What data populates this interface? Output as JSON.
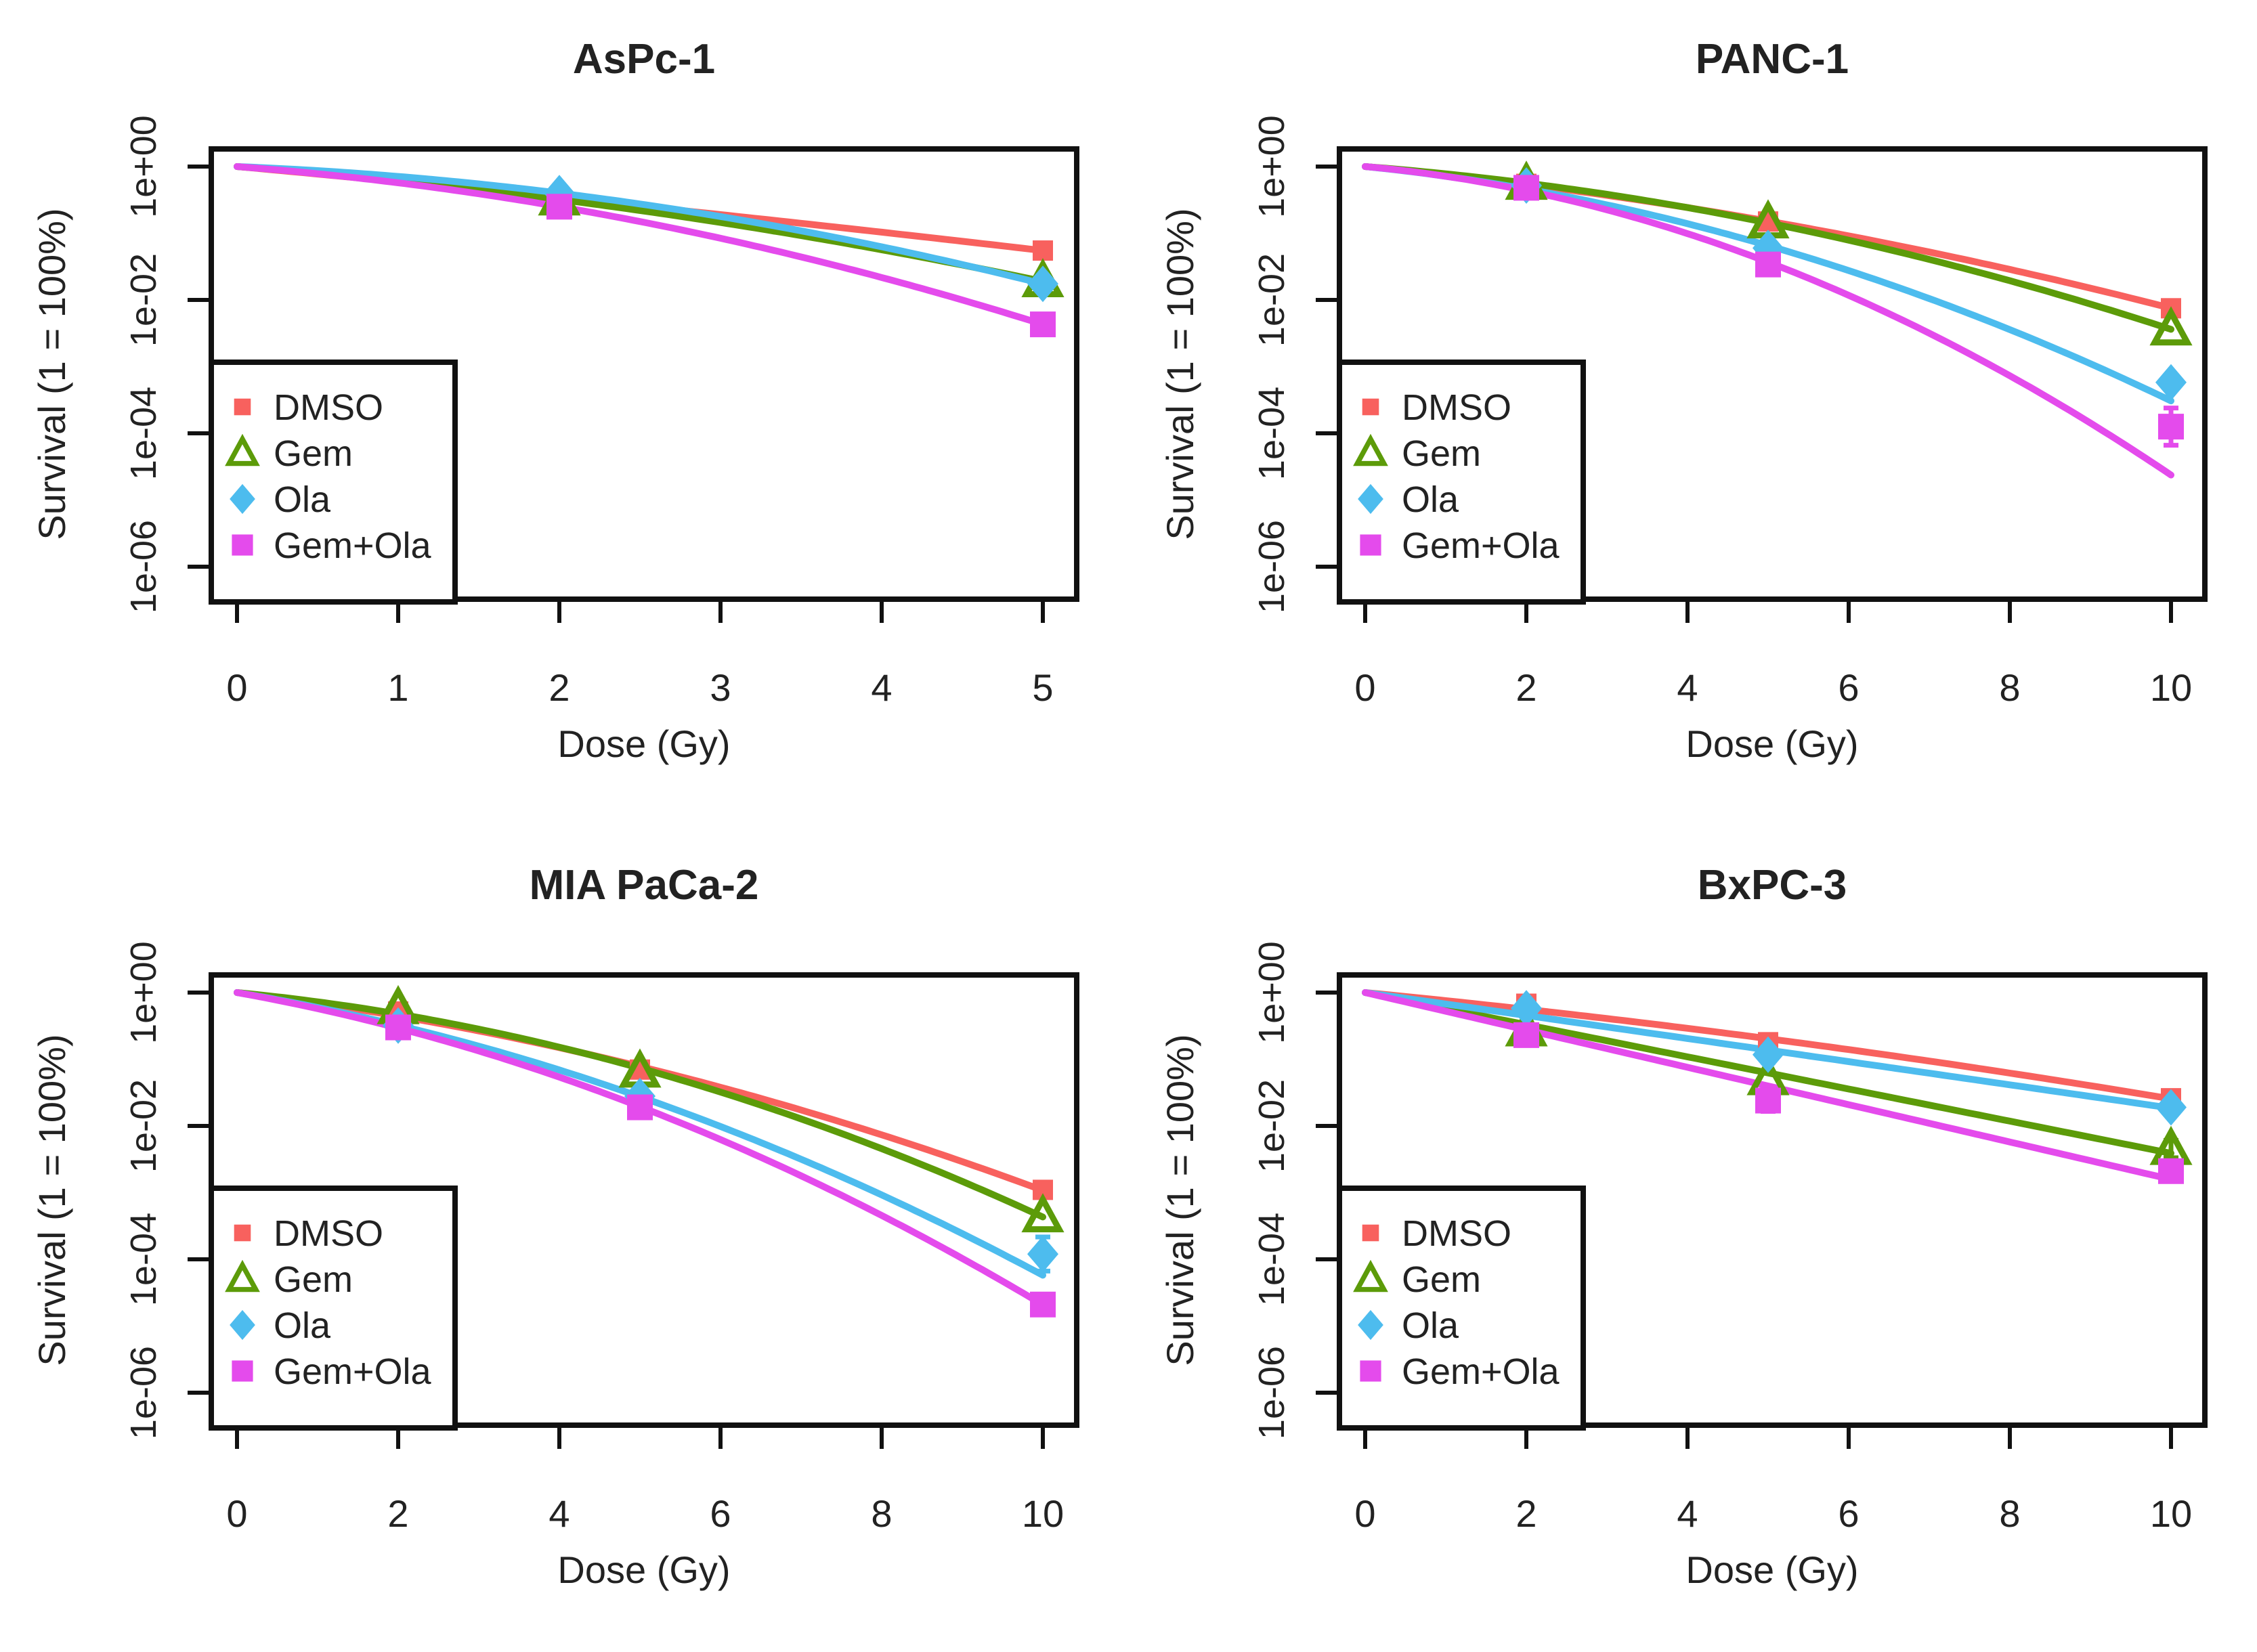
{
  "shared": {
    "ylabel": "Survival (1 = 100%)",
    "xlabel": "Dose (Gy)",
    "yticks": [
      {
        "label": "1e+00",
        "exp": 0
      },
      {
        "label": "1e-02",
        "exp": -2
      },
      {
        "label": "1e-04",
        "exp": -4
      },
      {
        "label": "1e-06",
        "exp": -6
      }
    ],
    "series_meta": [
      {
        "name": "DMSO",
        "color": "#F8615E",
        "marker": "square-small"
      },
      {
        "name": "Gem",
        "color": "#5C9B09",
        "marker": "triangle-open"
      },
      {
        "name": "Ola",
        "color": "#4DBCEE",
        "marker": "diamond"
      },
      {
        "name": "Gem+Ola",
        "color": "#E44BEC",
        "marker": "square"
      }
    ],
    "legend_labels": [
      "DMSO",
      "Gem",
      "Ola",
      "Gem+Ola"
    ],
    "text_color": "#222222",
    "axis_color": "#111111"
  },
  "chart_data": [
    {
      "type": "line",
      "title": "AsPc-1",
      "xlabel": "Dose (Gy)",
      "ylabel": "Survival (1 = 100%)",
      "x_axis": {
        "min": 0,
        "max": 5,
        "ticks": [
          0,
          1,
          2,
          3,
          4,
          5
        ]
      },
      "y_axis": {
        "scale": "log10",
        "tick_values": [
          1,
          0.01,
          0.0001,
          1e-06
        ]
      },
      "series": [
        {
          "name": "DMSO",
          "lq_alpha": 0.5125,
          "lq_beta": 0.0135,
          "points": [
            {
              "dose": 2,
              "survival": 0.34
            },
            {
              "dose": 5,
              "survival": 0.055
            }
          ]
        },
        {
          "name": "Gem",
          "lq_alpha": 0.4207,
          "lq_beta": 0.0744,
          "points": [
            {
              "dose": 2,
              "survival": 0.32
            },
            {
              "dose": 5,
              "survival": 0.019
            }
          ]
        },
        {
          "name": "Ola",
          "lq_alpha": 0.2232,
          "lq_beta": 0.1174,
          "points": [
            {
              "dose": 2,
              "survival": 0.4
            },
            {
              "dose": 5,
              "survival": 0.0174
            }
          ]
        },
        {
          "name": "Gem+Ola",
          "lq_alpha": 0.4284,
          "lq_beta": 0.1323,
          "points": [
            {
              "dose": 2,
              "survival": 0.25
            },
            {
              "dose": 5,
              "survival": 0.0043,
              "err_factor": 1.25
            }
          ]
        }
      ]
    },
    {
      "type": "line",
      "title": "PANC-1",
      "xlabel": "Dose (Gy)",
      "ylabel": "Survival (1 = 100%)",
      "x_axis": {
        "min": 0,
        "max": 10,
        "ticks": [
          0,
          2,
          4,
          6,
          8,
          10
        ]
      },
      "y_axis": {
        "scale": "log10",
        "tick_values": [
          1,
          0.01,
          0.0001,
          1e-06
        ]
      },
      "series": [
        {
          "name": "DMSO",
          "lq_alpha": 0.264,
          "lq_beta": 0.0225,
          "points": [
            {
              "dose": 2,
              "survival": 0.55
            },
            {
              "dose": 5,
              "survival": 0.15
            },
            {
              "dose": 10,
              "survival": 0.0075
            }
          ]
        },
        {
          "name": "Gem",
          "lq_alpha": 0.216,
          "lq_beta": 0.0346,
          "points": [
            {
              "dose": 2,
              "survival": 0.55
            },
            {
              "dose": 5,
              "survival": 0.145
            },
            {
              "dose": 10,
              "survival": 0.0036
            }
          ]
        },
        {
          "name": "Ola",
          "lq_alpha": 0.283,
          "lq_beta": 0.0526,
          "points": [
            {
              "dose": 2,
              "survival": 0.52,
              "err_factor": 1.15
            },
            {
              "dose": 5,
              "survival": 0.06
            },
            {
              "dose": 10,
              "survival": 0.00058
            }
          ]
        },
        {
          "name": "Gem+Ola",
          "lq_alpha": 0.255,
          "lq_beta": 0.081,
          "points": [
            {
              "dose": 2,
              "survival": 0.48
            },
            {
              "dose": 5,
              "survival": 0.034
            },
            {
              "dose": 10,
              "survival": 0.000126,
              "err_factor": 1.9
            }
          ]
        }
      ]
    },
    {
      "type": "line",
      "title": "MIA PaCa-2",
      "xlabel": "Dose (Gy)",
      "ylabel": "Survival (1 = 100%)",
      "x_axis": {
        "min": 0,
        "max": 10,
        "ticks": [
          0,
          2,
          4,
          6,
          8,
          10
        ]
      },
      "y_axis": {
        "scale": "log10",
        "tick_values": [
          1,
          0.01,
          0.0001,
          1e-06
        ]
      },
      "series": [
        {
          "name": "DMSO",
          "lq_alpha": 0.338,
          "lq_beta": 0.0345,
          "points": [
            {
              "dose": 2,
              "survival": 0.52
            },
            {
              "dose": 5,
              "survival": 0.07
            },
            {
              "dose": 10,
              "survival": 0.0011
            }
          ]
        },
        {
          "name": "Gem",
          "lq_alpha": 0.269,
          "lq_beta": 0.0506,
          "points": [
            {
              "dose": 2,
              "survival": 0.58
            },
            {
              "dose": 5,
              "survival": 0.065
            },
            {
              "dose": 10,
              "survival": 0.00044
            }
          ]
        },
        {
          "name": "Ola",
          "lq_alpha": 0.463,
          "lq_beta": 0.0513,
          "points": [
            {
              "dose": 2,
              "survival": 0.32
            },
            {
              "dose": 5,
              "survival": 0.028
            },
            {
              "dose": 10,
              "survival": 0.00012,
              "err_factor": 1.8
            }
          ]
        },
        {
          "name": "Gem+Ola",
          "lq_alpha": 0.498,
          "lq_beta": 0.058,
          "points": [
            {
              "dose": 2,
              "survival": 0.3
            },
            {
              "dose": 5,
              "survival": 0.019
            },
            {
              "dose": 10,
              "survival": 2.1e-05
            }
          ]
        }
      ]
    },
    {
      "type": "line",
      "title": "BxPC-3",
      "xlabel": "Dose (Gy)",
      "ylabel": "Survival (1 = 100%)",
      "x_axis": {
        "min": 0,
        "max": 10,
        "ticks": [
          0,
          2,
          4,
          6,
          8,
          10
        ]
      },
      "y_axis": {
        "scale": "log10",
        "tick_values": [
          1,
          0.01,
          0.0001,
          1e-06
        ]
      },
      "series": [
        {
          "name": "DMSO",
          "lq_alpha": 0.27,
          "lq_beta": 0.0097,
          "points": [
            {
              "dose": 2,
              "survival": 0.68
            },
            {
              "dose": 5,
              "survival": 0.18
            },
            {
              "dose": 10,
              "survival": 0.026
            }
          ]
        },
        {
          "name": "Gem",
          "lq_alpha": 0.555,
          "lq_beta": 0.0,
          "points": [
            {
              "dose": 2,
              "survival": 0.27
            },
            {
              "dose": 5,
              "survival": 0.05
            },
            {
              "dose": 10,
              "survival": 0.0045,
              "err_factor": 1.35
            }
          ]
        },
        {
          "name": "Ola",
          "lq_alpha": 0.395,
          "lq_beta": 0.0004,
          "points": [
            {
              "dose": 2,
              "survival": 0.58,
              "err_factor": 1.2
            },
            {
              "dose": 5,
              "survival": 0.117,
              "err_factor": 1.3
            },
            {
              "dose": 10,
              "survival": 0.019
            }
          ]
        },
        {
          "name": "Gem+Ola",
          "lq_alpha": 0.645,
          "lq_beta": 0.0,
          "points": [
            {
              "dose": 2,
              "survival": 0.23
            },
            {
              "dose": 5,
              "survival": 0.024,
              "err_factor": 1.45
            },
            {
              "dose": 10,
              "survival": 0.0021,
              "err_factor": 1.3
            }
          ]
        }
      ]
    }
  ]
}
